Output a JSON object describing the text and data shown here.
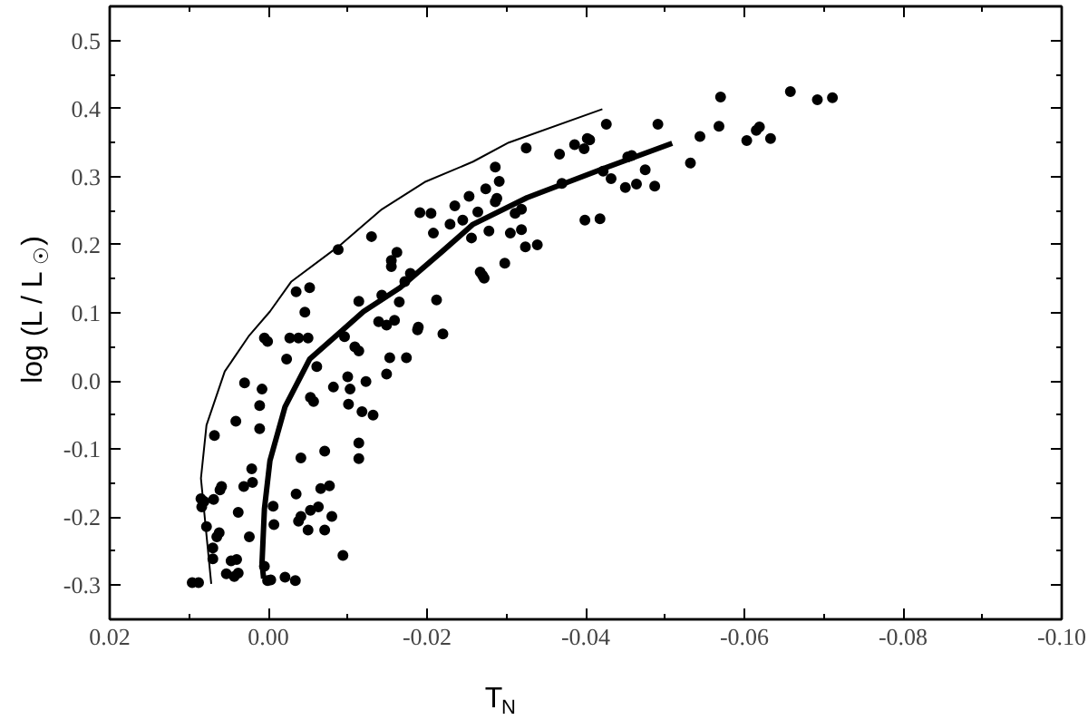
{
  "chart_data": {
    "type": "scatter",
    "xlabel": "T$_{N}$",
    "ylabel": "log (L / L$_{☉}$)",
    "xlim": [
      0.02,
      -0.1
    ],
    "ylim": [
      -0.35,
      0.55
    ],
    "xticks": [
      0.02,
      {
        "value": 0.0,
        "label": "0.00"
      },
      -0.02,
      -0.04,
      -0.06,
      -0.08,
      {
        "value": -0.1,
        "label": "-0.10"
      }
    ],
    "yticks": [
      -0.3,
      -0.2,
      -0.1,
      {
        "value": 0.0,
        "label": "0.0"
      },
      0.1,
      0.2,
      0.3,
      0.4,
      0.5
    ],
    "grid": false,
    "marker": "circle",
    "series": [
      {
        "color": "#000000",
        "x": [
          -0.0088,
          -0.013,
          -0.0035,
          -0.0052,
          -0.0046,
          -0.0114,
          -0.0155,
          -0.0162,
          -0.0155,
          -0.0191,
          -0.0205,
          -0.0208,
          -0.0229,
          -0.0235,
          -0.0245,
          -0.0253,
          -0.0256,
          -0.0143,
          -0.0165,
          -0.0172,
          -0.0179,
          -0.0212,
          -0.0139,
          -0.0149,
          -0.0159,
          -0.0189,
          0.0005,
          0.0001,
          -0.0027,
          -0.0038,
          -0.005,
          -0.0023,
          0.003,
          0.0008,
          0.0011,
          0.0041,
          0.0011,
          0.0068,
          -0.0061,
          -0.0053,
          -0.0057,
          -0.0082,
          -0.01,
          -0.0103,
          -0.0101,
          -0.0109,
          -0.0114,
          -0.0123,
          -0.0118,
          -0.0132,
          -0.0114,
          -0.0114,
          -0.0096,
          -0.0153,
          -0.0149,
          -0.0174,
          -0.0188,
          -0.022,
          -0.0041,
          -0.0071,
          0.0021,
          0.0031,
          0.002,
          0.0061,
          0.0059,
          0.0069,
          0.0085,
          0.0081,
          0.0084,
          0.0038,
          -0.0006,
          -0.0035,
          -0.0066,
          -0.0077,
          -0.008,
          -0.0071,
          -0.0041,
          -0.0038,
          -0.0053,
          -0.0063,
          -0.005,
          -0.0007,
          0.0078,
          0.0062,
          0.0065,
          0.0024,
          0.007,
          0.007,
          0.0047,
          0.004,
          0.0053,
          0.0043,
          0.0038,
          0.0005,
          0.0001,
          -0.0003,
          -0.0021,
          -0.0034,
          -0.0094,
          0.0096,
          0.0088,
          -0.0264,
          -0.0274,
          -0.0286,
          -0.0291,
          -0.0288,
          -0.0286,
          -0.0278,
          -0.0311,
          -0.0319,
          -0.0305,
          -0.0319,
          -0.0325,
          -0.0324,
          -0.0339,
          -0.0298,
          -0.0267,
          -0.027,
          -0.0272,
          -0.0367,
          -0.0386,
          -0.0398,
          -0.0402,
          -0.0405,
          -0.0426,
          -0.037,
          -0.0422,
          -0.0432,
          -0.0399,
          -0.0418,
          -0.045,
          -0.0453,
          -0.0458,
          -0.0464,
          -0.0475,
          -0.0487,
          -0.0491,
          -0.0532,
          -0.0544,
          -0.0568,
          -0.057,
          -0.0603,
          -0.0615,
          -0.0619,
          -0.0633,
          -0.0658,
          -0.0692,
          -0.0711
        ],
        "values": [
          0.193,
          0.212,
          0.131,
          0.137,
          0.101,
          0.117,
          0.177,
          0.189,
          0.168,
          0.247,
          0.246,
          0.217,
          0.23,
          0.257,
          0.236,
          0.271,
          0.21,
          0.126,
          0.116,
          0.146,
          0.158,
          0.119,
          0.087,
          0.082,
          0.089,
          0.079,
          0.063,
          0.058,
          0.063,
          0.063,
          0.063,
          0.032,
          -0.003,
          -0.012,
          -0.036,
          -0.059,
          -0.07,
          -0.08,
          0.021,
          -0.024,
          -0.03,
          -0.009,
          0.006,
          -0.012,
          -0.034,
          0.05,
          0.044,
          -0.001,
          -0.045,
          -0.05,
          -0.091,
          -0.114,
          0.065,
          0.034,
          0.01,
          0.034,
          0.075,
          0.069,
          -0.113,
          -0.103,
          -0.129,
          -0.155,
          -0.149,
          -0.16,
          -0.155,
          -0.174,
          -0.173,
          -0.177,
          -0.185,
          -0.193,
          -0.184,
          -0.166,
          -0.158,
          -0.154,
          -0.199,
          -0.219,
          -0.199,
          -0.206,
          -0.19,
          -0.185,
          -0.219,
          -0.211,
          -0.214,
          -0.223,
          -0.229,
          -0.229,
          -0.245,
          -0.261,
          -0.264,
          -0.262,
          -0.283,
          -0.287,
          -0.282,
          -0.272,
          -0.293,
          -0.292,
          -0.288,
          -0.293,
          -0.256,
          -0.296,
          -0.296,
          0.248,
          0.282,
          0.314,
          0.293,
          0.268,
          0.263,
          0.22,
          0.246,
          0.252,
          0.217,
          0.222,
          0.342,
          0.197,
          0.2,
          0.173,
          0.16,
          0.155,
          0.151,
          0.333,
          0.347,
          0.341,
          0.356,
          0.354,
          0.377,
          0.29,
          0.308,
          0.297,
          0.236,
          0.238,
          0.284,
          0.329,
          0.331,
          0.289,
          0.31,
          0.286,
          0.377,
          0.32,
          0.359,
          0.374,
          0.417,
          0.353,
          0.368,
          0.373,
          0.356,
          0.425,
          0.413,
          0.416
        ]
      },
      {
        "type": "line",
        "marker": "none",
        "color": "#000000",
        "x": [
          0.0072,
          0.0085,
          0.0078,
          0.0055,
          0.0024,
          -0.0002,
          -0.0029,
          -0.009,
          -0.0143,
          -0.0197,
          -0.0258,
          -0.0303,
          -0.0421
        ],
        "values": [
          -0.298,
          -0.143,
          -0.065,
          0.014,
          0.067,
          0.102,
          0.146,
          0.199,
          0.252,
          0.292,
          0.322,
          0.35,
          0.399
        ]
      },
      {
        "type": "line",
        "marker": "none",
        "color": "#000000",
        "x": [
          0.0006,
          0.0008,
          0.0005,
          -0.0002,
          -0.0021,
          -0.0052,
          -0.009,
          -0.012,
          -0.0166,
          -0.0219,
          -0.0258,
          -0.0326,
          -0.0425,
          -0.0509
        ],
        "values": [
          -0.29,
          -0.267,
          -0.188,
          -0.117,
          -0.038,
          0.032,
          0.071,
          0.102,
          0.137,
          0.19,
          0.23,
          0.269,
          0.313,
          0.349
        ]
      }
    ]
  }
}
